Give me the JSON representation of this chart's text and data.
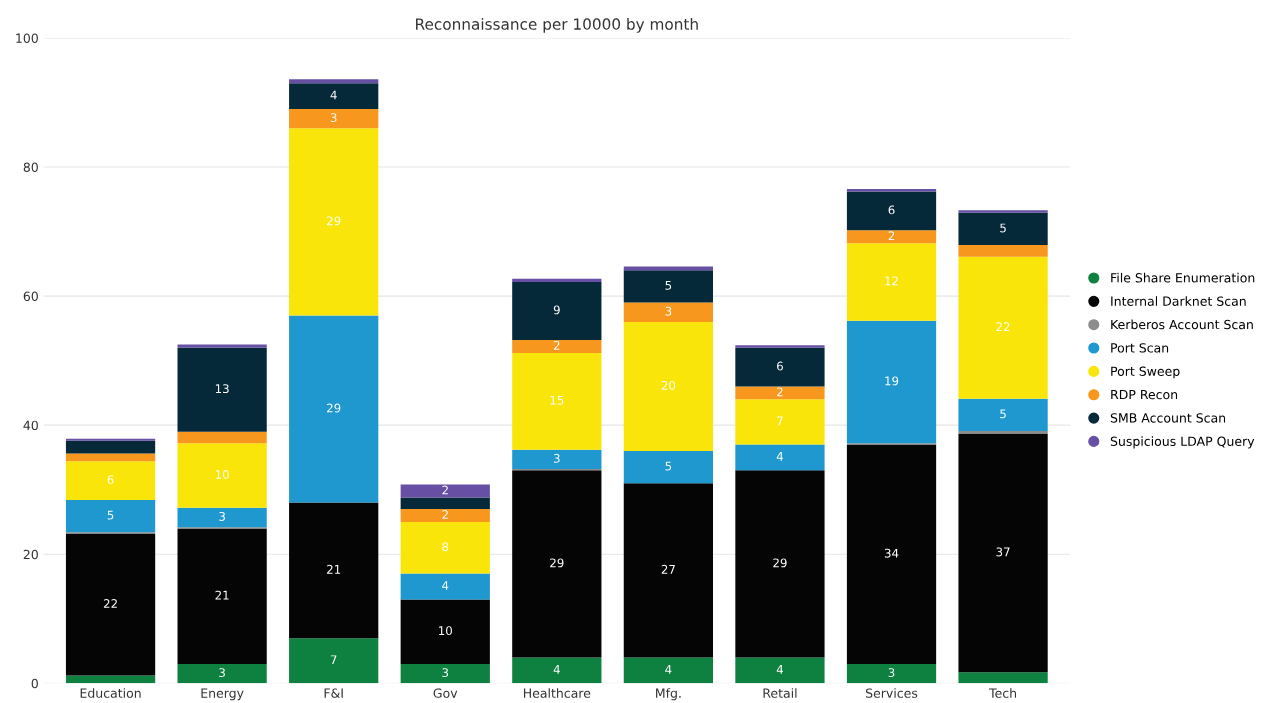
{
  "chart_data": {
    "type": "bar",
    "title": "Reconnaissance per 10000 by month",
    "stacked": true,
    "categories": [
      "Education",
      "Energy",
      "F&I",
      "Gov",
      "Healthcare",
      "Mfg.",
      "Retail",
      "Services",
      "Tech"
    ],
    "series": [
      {
        "name": "File Share Enumeration",
        "color": "#0e8040",
        "values": [
          1.2,
          3,
          7,
          3,
          4,
          4,
          4,
          3,
          1.7
        ],
        "value_labels": [
          null,
          "3",
          "7",
          "3",
          "4",
          "4",
          "4",
          "3",
          null
        ]
      },
      {
        "name": "Internal Darknet Scan",
        "color": "#050505",
        "values": [
          22,
          21,
          21,
          10,
          29,
          27,
          29,
          34,
          37
        ],
        "value_labels": [
          "22",
          "21",
          "21",
          "10",
          "29",
          "27",
          "29",
          "34",
          "37"
        ]
      },
      {
        "name": "Kerberos Account Scan",
        "color": "#8c8c8c",
        "values": [
          0.2,
          0.2,
          0,
          0,
          0.2,
          0,
          0,
          0.2,
          0.4
        ],
        "value_labels": [
          null,
          null,
          null,
          null,
          null,
          null,
          null,
          null,
          null
        ]
      },
      {
        "name": "Port Scan",
        "color": "#1e98cf",
        "values": [
          5,
          3,
          29,
          4,
          3,
          5,
          4,
          19,
          5
        ],
        "value_labels": [
          "5",
          "3",
          "29",
          "4",
          "3",
          "5",
          "4",
          "19",
          "5"
        ]
      },
      {
        "name": "Port Sweep",
        "color": "#f9e50a",
        "values": [
          6,
          10,
          29,
          8,
          15,
          20,
          7,
          12,
          22
        ],
        "value_labels": [
          "6",
          "10",
          "29",
          "8",
          "15",
          "20",
          "7",
          "12",
          "22"
        ]
      },
      {
        "name": "RDP Recon",
        "color": "#f7971e",
        "values": [
          1.2,
          1.8,
          3,
          2,
          2,
          3,
          2,
          2,
          1.8
        ],
        "value_labels": [
          null,
          null,
          "3",
          "2",
          "2",
          "3",
          "2",
          "2",
          null
        ]
      },
      {
        "name": "SMB Account Scan",
        "color": "#06293a",
        "values": [
          2,
          13,
          4,
          1.8,
          9,
          5,
          6,
          6,
          5
        ],
        "value_labels": [
          null,
          "13",
          "4",
          null,
          "9",
          "5",
          "6",
          "6",
          "5"
        ]
      },
      {
        "name": "Suspicious LDAP Query",
        "color": "#6750a4",
        "values": [
          0.3,
          0.5,
          0.6,
          2,
          0.5,
          0.6,
          0.4,
          0.4,
          0.4
        ],
        "value_labels": [
          null,
          null,
          null,
          "2",
          null,
          null,
          null,
          null,
          null
        ]
      }
    ],
    "ylim": [
      0,
      100
    ],
    "yticks": [
      0,
      20,
      40,
      60,
      80,
      100
    ],
    "grid": "y",
    "legend": "right"
  }
}
